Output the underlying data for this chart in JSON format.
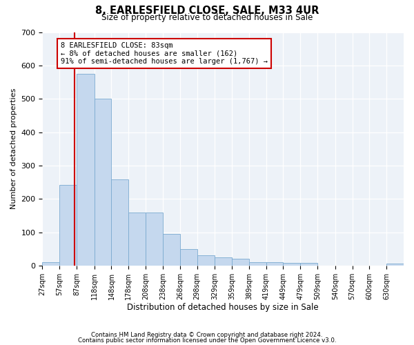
{
  "title": "8, EARLESFIELD CLOSE, SALE, M33 4UR",
  "subtitle": "Size of property relative to detached houses in Sale",
  "xlabel": "Distribution of detached houses by size in Sale",
  "ylabel": "Number of detached properties",
  "footnote1": "Contains HM Land Registry data © Crown copyright and database right 2024.",
  "footnote2": "Contains public sector information licensed under the Open Government Licence v3.0.",
  "annotation_line1": "8 EARLESFIELD CLOSE: 83sqm",
  "annotation_line2": "← 8% of detached houses are smaller (162)",
  "annotation_line3": "91% of semi-detached houses are larger (1,767) →",
  "property_size": 83,
  "bar_color": "#c5d8ee",
  "bar_edge_color": "#7aaad0",
  "red_line_color": "#cc0000",
  "annotation_box_color": "#cc0000",
  "background_color": "#edf2f8",
  "categories": [
    "27sqm",
    "57sqm",
    "87sqm",
    "118sqm",
    "148sqm",
    "178sqm",
    "208sqm",
    "238sqm",
    "268sqm",
    "298sqm",
    "329sqm",
    "359sqm",
    "389sqm",
    "419sqm",
    "449sqm",
    "479sqm",
    "509sqm",
    "540sqm",
    "570sqm",
    "600sqm",
    "630sqm"
  ],
  "bin_left": [
    27,
    57,
    87,
    118,
    148,
    178,
    208,
    238,
    268,
    298,
    329,
    359,
    389,
    419,
    449,
    479,
    509,
    540,
    570,
    600,
    630
  ],
  "bin_right": [
    57,
    87,
    118,
    148,
    178,
    208,
    238,
    268,
    298,
    329,
    359,
    389,
    419,
    449,
    479,
    509,
    540,
    570,
    600,
    630,
    660
  ],
  "values": [
    10,
    242,
    575,
    500,
    258,
    160,
    160,
    95,
    50,
    30,
    25,
    20,
    10,
    10,
    8,
    8,
    0,
    0,
    0,
    0,
    5
  ],
  "ylim": [
    0,
    700
  ],
  "yticks": [
    0,
    100,
    200,
    300,
    400,
    500,
    600,
    700
  ]
}
